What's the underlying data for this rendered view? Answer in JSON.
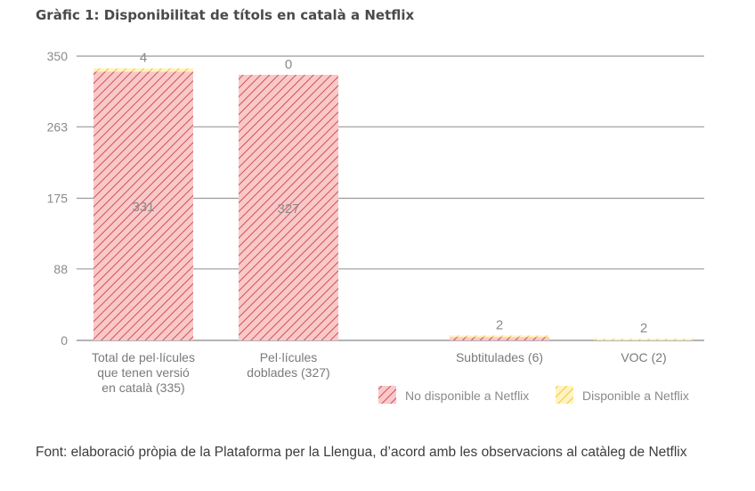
{
  "title": "Gràfic 1: Disponibilitat de títols en català a Netflix",
  "source": "Font: elaboració pròpia de la Plataforma per la Llengua, d’acord amb les observacions al catàleg de Netflix",
  "colors": {
    "not_available_fill": "#f9c9c9",
    "not_available_hatch": "#d0505a",
    "available_fill": "#fff4c0",
    "available_hatch": "#f2c542",
    "grid": "#9a9a9a"
  },
  "chart_data": {
    "type": "bar",
    "stacked": true,
    "title": "Gràfic 1: Disponibilitat de títols en català a Netflix",
    "xlabel": "",
    "ylabel": "",
    "ylim": [
      0,
      350
    ],
    "yticks": [
      0,
      88,
      175,
      263,
      350
    ],
    "grid": true,
    "legend_position": "bottom-right",
    "categories": [
      [
        "Total de pel·lícules",
        "que tenen versió",
        "en català (335)"
      ],
      [
        "Pel·lícules",
        "doblades (327)"
      ],
      [
        "Subtitulades (6)"
      ],
      [
        "VOC (2)"
      ]
    ],
    "series": [
      {
        "name": "No disponible a Netflix",
        "values": [
          331,
          327,
          4,
          0
        ]
      },
      {
        "name": "Disponible a Netflix",
        "values": [
          4,
          0,
          2,
          2
        ]
      }
    ],
    "data_labels": {
      "inside": [
        "331",
        "327",
        "",
        ""
      ],
      "top": [
        "4",
        "0",
        "2",
        "2"
      ]
    }
  }
}
